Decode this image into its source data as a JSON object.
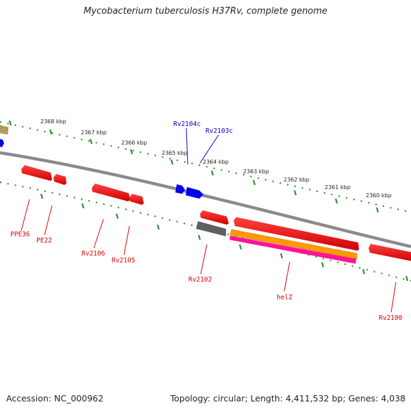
{
  "title": "Mycobacterium tuberculosis H37Rv, complete genome",
  "footer": {
    "accession": "Accession: NC_000962",
    "summary": "Topology: circular; Length: 4,411,532 bp; Genes: 4,038"
  },
  "scale_labels": [
    "2368 kbp",
    "2367 kbp",
    "2366 kbp",
    "2365 kbp",
    "2364 kbp",
    "2363 kbp",
    "2362 kbp",
    "2361 kbp",
    "2360 kbp"
  ],
  "gene_labels_forward": [
    "Rv2104c",
    "Rv2103c"
  ],
  "gene_labels_reverse": [
    "PPE36",
    "PE22",
    "Rv2106",
    "Rv2105",
    "Rv2102",
    "helZ",
    "Rv2100"
  ],
  "colors": {
    "backbone": "#808080",
    "tick": "#2e8b2e",
    "gene_red": "#ff0000",
    "gene_blue": "#0000ee",
    "gene_grey": "#606060",
    "gene_orange": "#ff9900",
    "gene_magenta": "#ff1493",
    "gene_tan": "#b0a060",
    "label_red": "#e00000",
    "label_blue": "#0000c8"
  }
}
